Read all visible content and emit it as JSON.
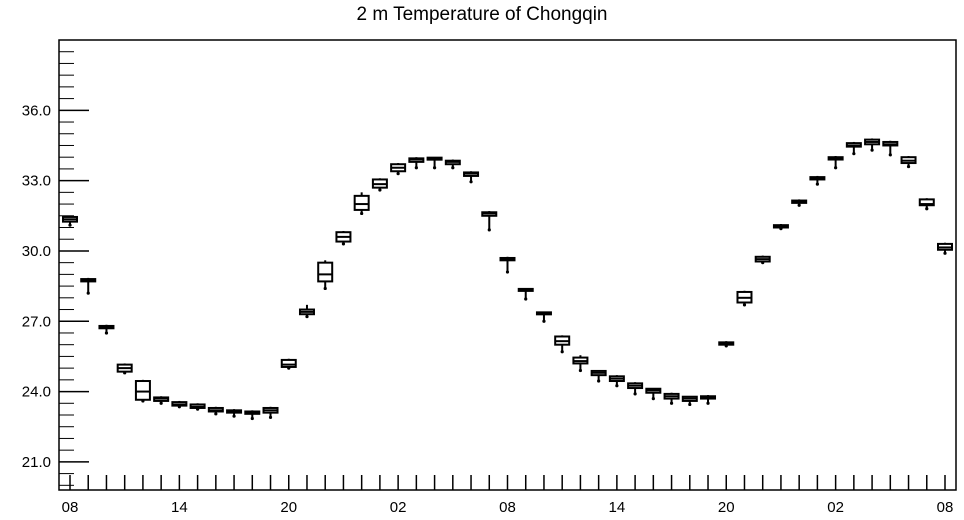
{
  "chart_data": {
    "type": "box",
    "title": "2 m Temperature of Chongqin",
    "xlabel": "",
    "ylabel": "",
    "ylim": [
      19.8,
      39.0
    ],
    "y_major_ticks": [
      21.0,
      24.0,
      27.0,
      30.0,
      33.0,
      36.0
    ],
    "y_minor_step": 0.5,
    "y_tick_labels": [
      "21.0",
      "24.0",
      "27.0",
      "30.0",
      "33.0",
      "36.0"
    ],
    "x_tick_labels": [
      "08",
      "14",
      "20",
      "02",
      "08",
      "14",
      "20",
      "02",
      "08"
    ],
    "x_range_hours": [
      0,
      48
    ],
    "x_label_every_hours": 6,
    "grid": false,
    "legend": "none",
    "colors": {
      "box": "#000000",
      "background": "#ffffff"
    },
    "series": [
      {
        "boxes": [
          {
            "x": 0,
            "low": 31.1,
            "q1": 31.25,
            "median": 31.35,
            "q3": 31.45,
            "high": 31.5
          },
          {
            "x": 1,
            "low": 28.2,
            "q1": 28.7,
            "median": 28.75,
            "q3": 28.8,
            "high": 28.85
          },
          {
            "x": 2,
            "low": 26.5,
            "q1": 26.7,
            "median": 26.75,
            "q3": 26.8,
            "high": 26.85
          },
          {
            "x": 3,
            "low": 24.8,
            "q1": 24.85,
            "median": 25.0,
            "q3": 25.15,
            "high": 25.2
          },
          {
            "x": 4,
            "low": 23.6,
            "q1": 23.65,
            "median": 24.0,
            "q3": 24.45,
            "high": 24.5
          },
          {
            "x": 5,
            "low": 23.5,
            "q1": 23.6,
            "median": 23.7,
            "q3": 23.75,
            "high": 23.8
          },
          {
            "x": 6,
            "low": 23.35,
            "q1": 23.4,
            "median": 23.45,
            "q3": 23.55,
            "high": 23.6
          },
          {
            "x": 7,
            "low": 23.25,
            "q1": 23.3,
            "median": 23.35,
            "q3": 23.45,
            "high": 23.5
          },
          {
            "x": 8,
            "low": 23.05,
            "q1": 23.15,
            "median": 23.2,
            "q3": 23.3,
            "high": 23.35
          },
          {
            "x": 9,
            "low": 22.95,
            "q1": 23.1,
            "median": 23.15,
            "q3": 23.2,
            "high": 23.25
          },
          {
            "x": 10,
            "low": 22.85,
            "q1": 23.05,
            "median": 23.1,
            "q3": 23.15,
            "high": 23.2
          },
          {
            "x": 11,
            "low": 22.9,
            "q1": 23.1,
            "median": 23.2,
            "q3": 23.3,
            "high": 23.35
          },
          {
            "x": 12,
            "low": 25.0,
            "q1": 25.05,
            "median": 25.15,
            "q3": 25.35,
            "high": 25.4
          },
          {
            "x": 13,
            "low": 27.2,
            "q1": 27.3,
            "median": 27.4,
            "q3": 27.5,
            "high": 27.7
          },
          {
            "x": 14,
            "low": 28.4,
            "q1": 28.7,
            "median": 29.0,
            "q3": 29.5,
            "high": 29.6
          },
          {
            "x": 15,
            "low": 30.3,
            "q1": 30.4,
            "median": 30.6,
            "q3": 30.8,
            "high": 30.85
          },
          {
            "x": 16,
            "low": 31.6,
            "q1": 31.75,
            "median": 32.0,
            "q3": 32.35,
            "high": 32.5
          },
          {
            "x": 17,
            "low": 32.6,
            "q1": 32.7,
            "median": 32.85,
            "q3": 33.05,
            "high": 33.1
          },
          {
            "x": 18,
            "low": 33.3,
            "q1": 33.4,
            "median": 33.55,
            "q3": 33.7,
            "high": 33.75
          },
          {
            "x": 19,
            "low": 33.55,
            "q1": 33.8,
            "median": 33.9,
            "q3": 33.95,
            "high": 34.0
          },
          {
            "x": 20,
            "low": 33.55,
            "q1": 33.9,
            "median": 33.95,
            "q3": 33.98,
            "high": 34.0
          },
          {
            "x": 21,
            "low": 33.55,
            "q1": 33.7,
            "median": 33.8,
            "q3": 33.85,
            "high": 33.9
          },
          {
            "x": 22,
            "low": 32.95,
            "q1": 33.2,
            "median": 33.3,
            "q3": 33.35,
            "high": 33.4
          },
          {
            "x": 23,
            "low": 30.9,
            "q1": 31.5,
            "median": 31.6,
            "q3": 31.65,
            "high": 31.7
          },
          {
            "x": 24,
            "low": 29.1,
            "q1": 29.6,
            "median": 29.65,
            "q3": 29.7,
            "high": 29.75
          },
          {
            "x": 25,
            "low": 27.95,
            "q1": 28.3,
            "median": 28.35,
            "q3": 28.38,
            "high": 28.4
          },
          {
            "x": 26,
            "low": 27.0,
            "q1": 27.3,
            "median": 27.35,
            "q3": 27.38,
            "high": 27.4
          },
          {
            "x": 27,
            "low": 25.7,
            "q1": 26.0,
            "median": 26.15,
            "q3": 26.35,
            "high": 26.4
          },
          {
            "x": 28,
            "low": 24.9,
            "q1": 25.2,
            "median": 25.3,
            "q3": 25.45,
            "high": 25.55
          },
          {
            "x": 29,
            "low": 24.45,
            "q1": 24.7,
            "median": 24.8,
            "q3": 24.88,
            "high": 24.9
          },
          {
            "x": 30,
            "low": 24.25,
            "q1": 24.45,
            "median": 24.55,
            "q3": 24.65,
            "high": 24.7
          },
          {
            "x": 31,
            "low": 23.9,
            "q1": 24.15,
            "median": 24.25,
            "q3": 24.35,
            "high": 24.4
          },
          {
            "x": 32,
            "low": 23.7,
            "q1": 23.95,
            "median": 24.05,
            "q3": 24.12,
            "high": 24.15
          },
          {
            "x": 33,
            "low": 23.5,
            "q1": 23.7,
            "median": 23.8,
            "q3": 23.9,
            "high": 23.95
          },
          {
            "x": 34,
            "low": 23.45,
            "q1": 23.6,
            "median": 23.7,
            "q3": 23.78,
            "high": 23.8
          },
          {
            "x": 35,
            "low": 23.5,
            "q1": 23.7,
            "median": 23.75,
            "q3": 23.8,
            "high": 23.85
          },
          {
            "x": 36,
            "low": 25.95,
            "q1": 26.0,
            "median": 26.05,
            "q3": 26.1,
            "high": 26.15
          },
          {
            "x": 37,
            "low": 27.7,
            "q1": 27.8,
            "median": 28.0,
            "q3": 28.25,
            "high": 28.3
          },
          {
            "x": 38,
            "low": 29.5,
            "q1": 29.55,
            "median": 29.65,
            "q3": 29.75,
            "high": 29.8
          },
          {
            "x": 39,
            "low": 30.95,
            "q1": 31.0,
            "median": 31.05,
            "q3": 31.1,
            "high": 31.15
          },
          {
            "x": 40,
            "low": 31.95,
            "q1": 32.05,
            "median": 32.1,
            "q3": 32.15,
            "high": 32.2
          },
          {
            "x": 41,
            "low": 32.85,
            "q1": 33.05,
            "median": 33.1,
            "q3": 33.15,
            "high": 33.2
          },
          {
            "x": 42,
            "low": 33.55,
            "q1": 33.9,
            "median": 33.95,
            "q3": 34.0,
            "high": 34.05
          },
          {
            "x": 43,
            "low": 34.15,
            "q1": 34.45,
            "median": 34.5,
            "q3": 34.6,
            "high": 34.65
          },
          {
            "x": 44,
            "low": 34.3,
            "q1": 34.55,
            "median": 34.65,
            "q3": 34.75,
            "high": 34.8
          },
          {
            "x": 45,
            "low": 34.1,
            "q1": 34.5,
            "median": 34.55,
            "q3": 34.65,
            "high": 34.7
          },
          {
            "x": 46,
            "low": 33.6,
            "q1": 33.75,
            "median": 33.85,
            "q3": 34.0,
            "high": 34.05
          },
          {
            "x": 47,
            "low": 31.8,
            "q1": 31.95,
            "median": 32.0,
            "q3": 32.2,
            "high": 32.25
          },
          {
            "x": 48,
            "low": 29.9,
            "q1": 30.05,
            "median": 30.15,
            "q3": 30.3,
            "high": 30.35
          }
        ]
      }
    ]
  }
}
